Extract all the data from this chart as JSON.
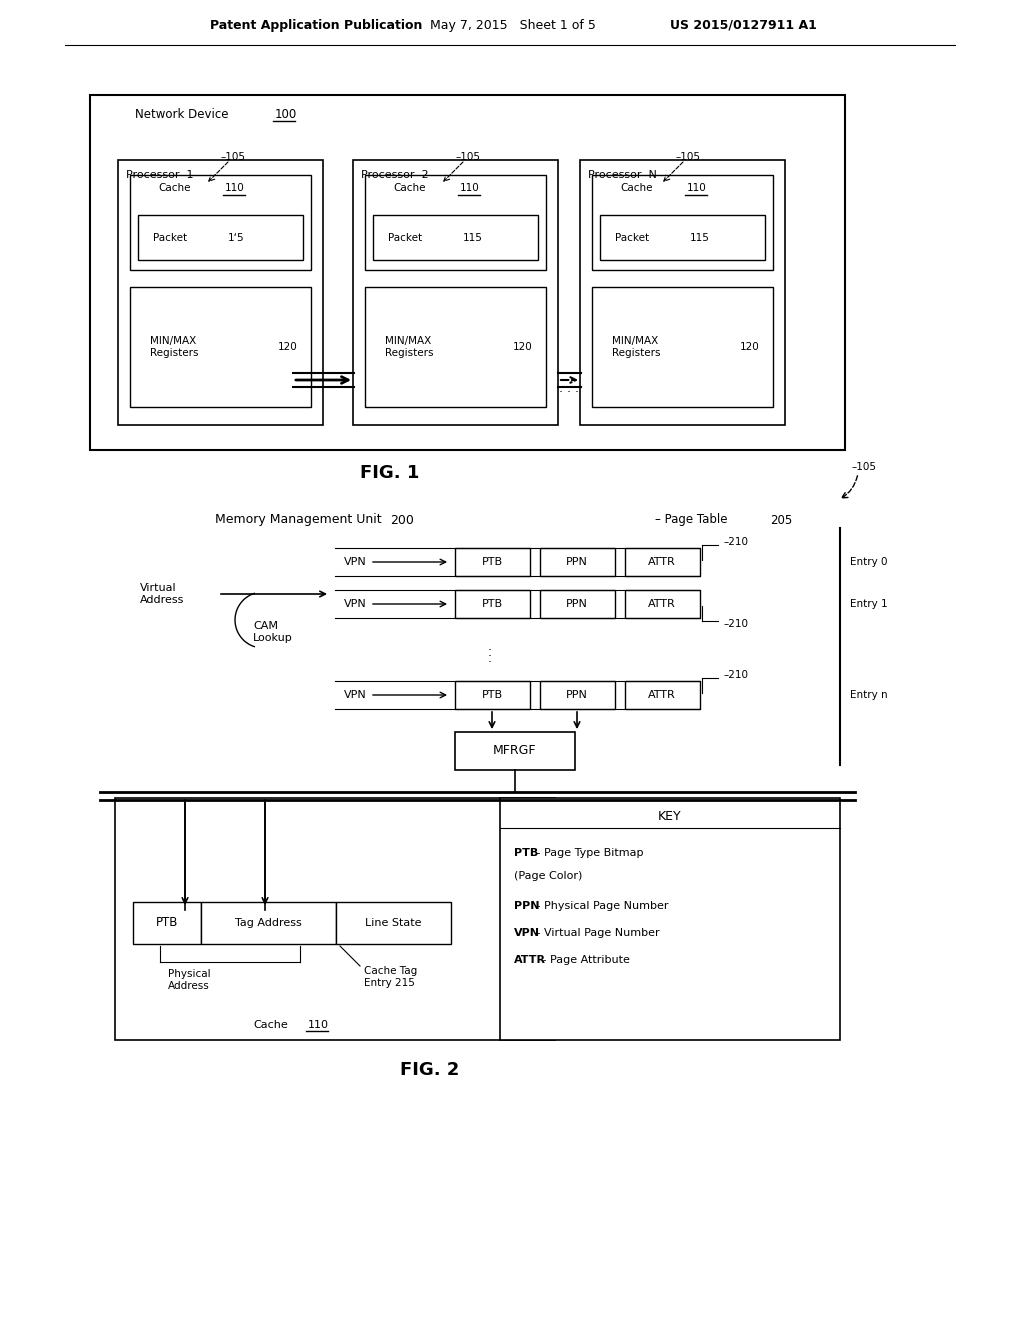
{
  "bg_color": "#ffffff",
  "header_left": "Patent Application Publication",
  "header_mid": "May 7, 2015   Sheet 1 of 5",
  "header_right": "US 2015/0127911 A1",
  "fig1_label": "FIG. 1",
  "fig2_label": "FIG. 2",
  "network_device_label": "Network Device",
  "network_device_num": "100",
  "processor_labels": [
    "Processor  1",
    "Processor  2",
    "Processor  N"
  ],
  "cache_label": "Cache",
  "cache_num": "110",
  "packet_label": "Packet",
  "packet_nums": [
    "1‘5",
    "115",
    "115"
  ],
  "minmax_label": "MIN/MAX\nRegisters",
  "minmax_num": "120",
  "ref_105": "105",
  "mmu_label": "Memory Management Unit",
  "mmu_num": "200",
  "page_table_label": "Page Table",
  "page_table_num": "205",
  "entry_labels": [
    "Entry 0",
    "Entry 1",
    "Entry n"
  ],
  "entry_num": "210",
  "virtual_addr_label": "Virtual\nAddress",
  "cam_lookup_label": "CAM\nLookup",
  "mfrgf_label": "MFRGF",
  "ptb_label": "PTB",
  "tag_addr_label": "Tag Address",
  "line_state_label": "Line State",
  "phys_addr_label": "Physical\nAddress",
  "cache_tag_label": "Cache Tag\nEntry 215",
  "cache_bottom_label": "Cache",
  "cache_bottom_num": "110",
  "key_title": "KEY",
  "key_lines": [
    "PTB - Page Type Bitmap",
    "(Page Color)",
    "PPN - Physical Page Number",
    "VPN - Virtual Page Number",
    "ATTR - Page Attribute"
  ]
}
